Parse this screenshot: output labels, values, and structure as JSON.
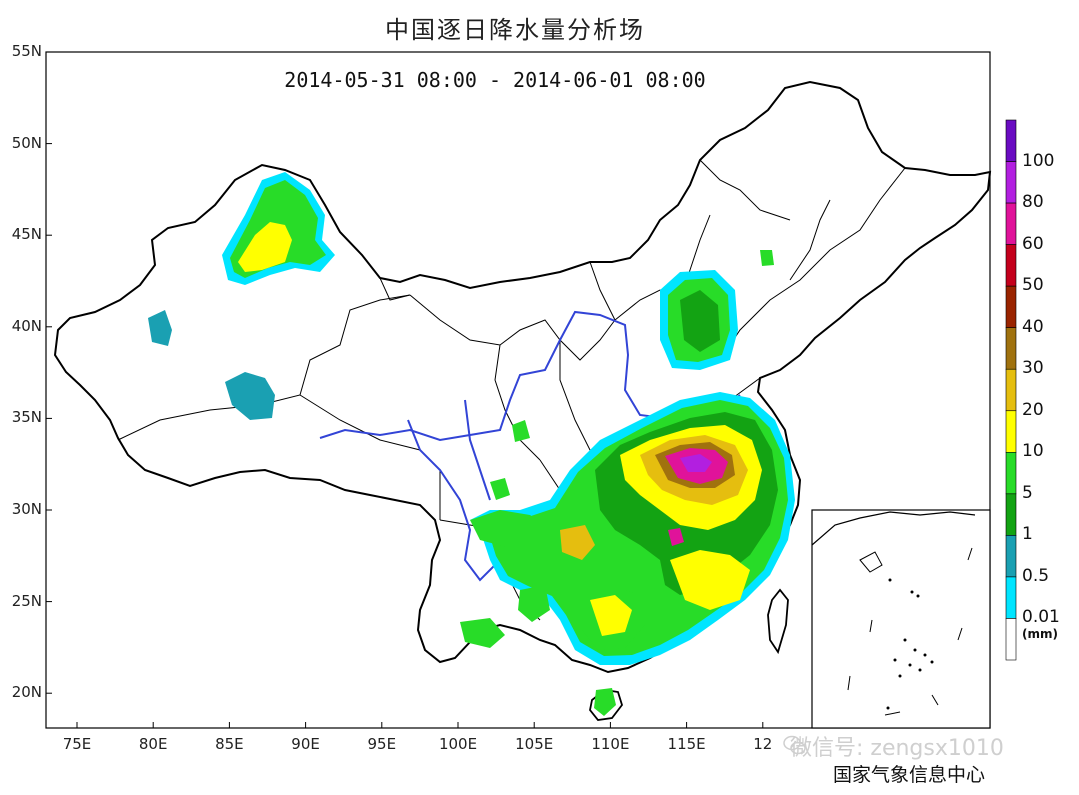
{
  "title": "中国逐日降水量分析场",
  "subtitle": "2014-05-31 08:00 - 2014-06-01 08:00",
  "axes": {
    "lat_labels": [
      "55N",
      "50N",
      "45N",
      "40N",
      "35N",
      "30N",
      "25N",
      "20N"
    ],
    "lon_labels": [
      "75E",
      "80E",
      "85E",
      "90E",
      "95E",
      "100E",
      "105E",
      "110E",
      "115E",
      "12"
    ]
  },
  "legend": {
    "labels": [
      "100",
      "80",
      "60",
      "50",
      "40",
      "30",
      "20",
      "10",
      "5",
      "1",
      "0.5",
      "0.01"
    ],
    "unit": "(mm)",
    "colors": [
      "#6a0cc2",
      "#b21fe0",
      "#e0139a",
      "#c4001c",
      "#9a2400",
      "#a0720e",
      "#e5be0f",
      "#ffff00",
      "#28dc28",
      "#13a313",
      "#1aa0b2",
      "#00e5ff",
      "#ffffff"
    ]
  },
  "footer": {
    "agency": "国家气象信息中心",
    "watermark": "微信号: zengsx1010"
  }
}
